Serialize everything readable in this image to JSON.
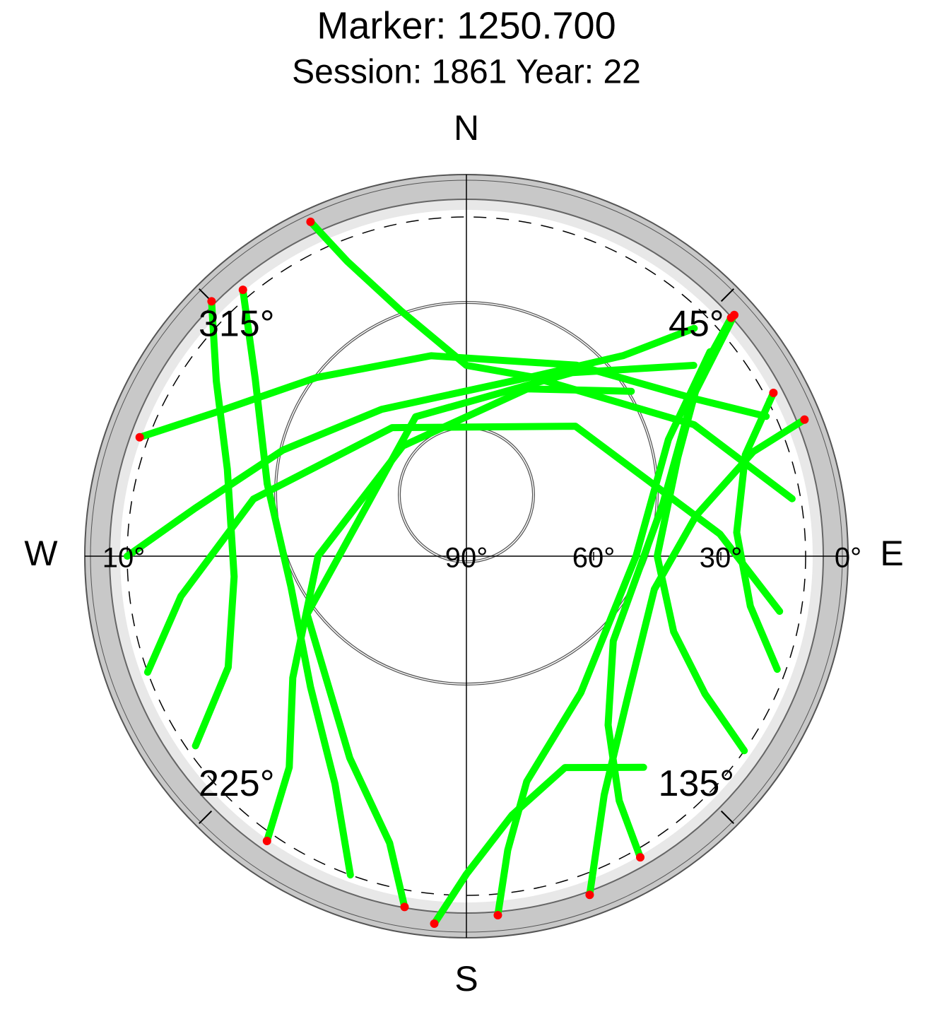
{
  "chart_data": {
    "type": "polar",
    "title": "Marker: 1250.700",
    "subtitle": "Session: 1861 Year: 22",
    "directions": [
      {
        "azimuth": 0,
        "label": "N"
      },
      {
        "azimuth": 90,
        "label": "E"
      },
      {
        "azimuth": 180,
        "label": "S"
      },
      {
        "azimuth": 270,
        "label": "W"
      },
      {
        "azimuth": 45,
        "label": "45°"
      },
      {
        "azimuth": 135,
        "label": "135°"
      },
      {
        "azimuth": 225,
        "label": "225°"
      },
      {
        "azimuth": 315,
        "label": "315°"
      }
    ],
    "rlim": [
      90,
      0
    ],
    "rticks": [
      {
        "value": 90,
        "label": "90°"
      },
      {
        "value": 60,
        "label": "60°"
      },
      {
        "value": 30,
        "label": "30°"
      },
      {
        "value": 0,
        "label": "0°"
      }
    ],
    "mask": {
      "value": 10,
      "label": "10°"
    },
    "color": "#00ff00",
    "low_color": "#ff0000",
    "series": [
      {
        "azimuth": [
          335,
          338,
          345,
          360,
          20,
          38,
          45
        ],
        "elevation": [
          3,
          15,
          30,
          45,
          45,
          30,
          14
        ]
      },
      {
        "azimuth": [
          290,
          300,
          320,
          350,
          30,
          55,
          65
        ],
        "elevation": [
          8,
          22,
          35,
          42,
          38,
          25,
          12
        ]
      },
      {
        "azimuth": [
          270,
          280,
          300,
          330,
          20,
          60,
          80
        ],
        "elevation": [
          10,
          25,
          40,
          50,
          45,
          28,
          12
        ]
      },
      {
        "azimuth": [
          250,
          262,
          285,
          330,
          40,
          85,
          100
        ],
        "elevation": [
          10,
          22,
          38,
          55,
          50,
          30,
          15
        ]
      },
      {
        "azimuth": [
          215,
          220,
          235,
          270,
          330,
          20,
          45
        ],
        "elevation": [
          8,
          25,
          40,
          55,
          60,
          48,
          35
        ]
      },
      {
        "azimuth": [
          190,
          195,
          210,
          250,
          340,
          30,
          50
        ],
        "elevation": [
          6,
          20,
          35,
          50,
          55,
          40,
          20
        ]
      },
      {
        "azimuth": [
          175,
          172,
          165,
          140,
          90,
          60,
          50
        ],
        "elevation": [
          5,
          20,
          35,
          48,
          50,
          35,
          15
        ]
      },
      {
        "azimuth": [
          150,
          148,
          140,
          120,
          75,
          55,
          48
        ],
        "elevation": [
          8,
          22,
          38,
          50,
          42,
          25,
          5
        ]
      },
      {
        "azimuth": [
          125,
          120,
          110,
          90,
          65,
          52,
          48
        ],
        "elevation": [
          10,
          25,
          38,
          45,
          35,
          20,
          6
        ]
      },
      {
        "azimuth": [
          200,
          210,
          230,
          260,
          290,
          310,
          320
        ],
        "elevation": [
          10,
          28,
          42,
          48,
          40,
          25,
          8
        ]
      },
      {
        "azimuth": [
          160,
          150,
          130,
          100,
          80,
          70,
          68
        ],
        "elevation": [
          5,
          25,
          40,
          45,
          35,
          18,
          4
        ]
      },
      {
        "azimuth": [
          235,
          245,
          265,
          290,
          305,
          315
        ],
        "elevation": [
          12,
          28,
          35,
          30,
          18,
          5
        ]
      },
      {
        "azimuth": [
          185,
          180,
          170,
          155,
          140
        ],
        "elevation": [
          3,
          15,
          28,
          35,
          25
        ]
      },
      {
        "azimuth": [
          110,
          100,
          85,
          70,
          62
        ],
        "elevation": [
          12,
          22,
          26,
          20,
          8
        ]
      }
    ]
  }
}
